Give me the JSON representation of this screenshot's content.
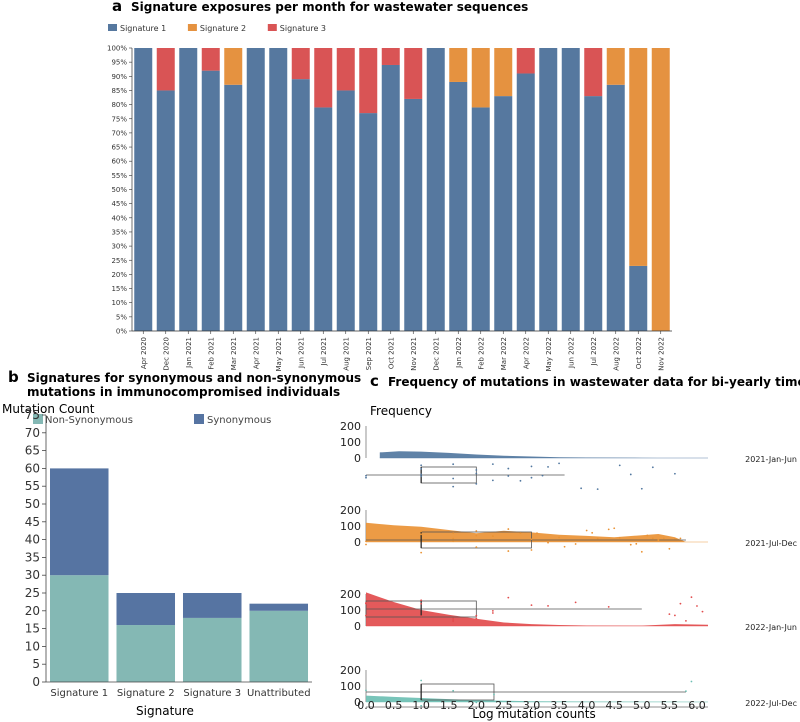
{
  "colors": {
    "sig1": "#56789f",
    "sig2": "#e59240",
    "sig3": "#d95455",
    "nonsyn": "#84b8b4",
    "syn": "#5674a2",
    "t1": "#51779f",
    "t2": "#ea9335",
    "t3": "#e24c4d",
    "t4": "#6cbfb3"
  },
  "chart_data": [
    {
      "panel": "a",
      "type": "bar",
      "stacked": "percent",
      "title": "Signature exposures per month for wastewater sequences",
      "legend": [
        "Signature 1",
        "Signature 2",
        "Signature 3"
      ],
      "categories": [
        "Apr 2020",
        "Dec 2020",
        "Jan 2021",
        "Feb 2021",
        "Mar 2021",
        "Apr 2021",
        "May 2021",
        "Jun 2021",
        "Jul 2021",
        "Aug 2021",
        "Sep 2021",
        "Oct 2021",
        "Nov 2021",
        "Dec 2021",
        "Jan 2022",
        "Feb 2022",
        "Mar 2022",
        "Apr 2022",
        "May 2022",
        "Jun 2022",
        "Jul 2022",
        "Aug 2022",
        "Oct 2022",
        "Nov 2022"
      ],
      "series": [
        {
          "name": "Signature 1",
          "values": [
            100,
            85,
            100,
            92,
            87,
            100,
            100,
            89,
            79,
            85,
            77,
            94,
            82,
            100,
            88,
            79,
            83,
            91,
            100,
            100,
            83,
            87,
            23,
            0
          ]
        },
        {
          "name": "Signature 2",
          "values": [
            0,
            0,
            0,
            0,
            13,
            0,
            0,
            0,
            0,
            0,
            0,
            0,
            0,
            0,
            12,
            21,
            17,
            0,
            0,
            0,
            0,
            13,
            77,
            100
          ]
        },
        {
          "name": "Signature 3",
          "values": [
            0,
            15,
            0,
            8,
            0,
            0,
            0,
            11,
            21,
            15,
            23,
            6,
            18,
            0,
            0,
            0,
            0,
            9,
            0,
            0,
            17,
            0,
            0,
            0
          ]
        }
      ],
      "yticks": [
        "0%",
        "5%",
        "10%",
        "15%",
        "20%",
        "25%",
        "30%",
        "35%",
        "40%",
        "45%",
        "50%",
        "55%",
        "60%",
        "65%",
        "70%",
        "75%",
        "80%",
        "85%",
        "90%",
        "95%",
        "100%"
      ],
      "ylim": [
        0,
        100
      ]
    },
    {
      "panel": "b",
      "type": "bar",
      "stacked": true,
      "title": "Signatures for synonymous and non-synonymous mutations in immunocompromised individuals",
      "xlabel": "Signature",
      "ylabel": "Mutation Count",
      "legend": [
        "Non-Synonymous",
        "Synonymous"
      ],
      "categories": [
        "Signature 1",
        "Signature 2",
        "Signature 3",
        "Unattributed"
      ],
      "series": [
        {
          "name": "Non-Synonymous",
          "values": [
            30,
            16,
            18,
            20
          ]
        },
        {
          "name": "Synonymous",
          "values": [
            30,
            9,
            7,
            2
          ]
        }
      ],
      "ylim": [
        0,
        75
      ],
      "yticks": [
        0,
        5,
        10,
        15,
        20,
        25,
        30,
        35,
        40,
        45,
        50,
        55,
        60,
        65,
        70,
        75
      ]
    },
    {
      "panel": "c",
      "type": "area",
      "subtype": "raincloud",
      "title": "Frequency of mutations in wastewater data for bi-yearly time groups",
      "xlabel": "Log mutation counts",
      "ylabel": "Frequency",
      "xlim": [
        0,
        6.2
      ],
      "xticks": [
        "0.0",
        "0.5",
        "1.0",
        "1.5",
        "2.0",
        "2.5",
        "3.0",
        "3.5",
        "4.0",
        "4.5",
        "5.0",
        "5.5",
        "6.0"
      ],
      "yticks": [
        "200",
        "100",
        "0"
      ],
      "groups": [
        {
          "name": "2021-Jan-Jun",
          "density": [
            [
              0.25,
              35
            ],
            [
              0.6,
              42
            ],
            [
              1.0,
              40
            ],
            [
              1.5,
              32
            ],
            [
              2.0,
              22
            ],
            [
              2.5,
              14
            ],
            [
              3.0,
              9
            ],
            [
              3.5,
              5
            ],
            [
              4.0,
              3
            ],
            [
              4.5,
              2
            ],
            [
              5.0,
              1
            ],
            [
              5.3,
              0
            ]
          ],
          "box": {
            "min": 0.0,
            "q1": 1.0,
            "median": 1.0,
            "q3": 2.0,
            "max": 3.6
          },
          "points": [
            0,
            0,
            1,
            1,
            1,
            1,
            1.58,
            1.58,
            1.58,
            2,
            2,
            2,
            2.3,
            2.3,
            2.58,
            2.58,
            2.8,
            3,
            3,
            3.2,
            3.3,
            3.5,
            3.9,
            4.2,
            4.6,
            4.8,
            5.0,
            5.2,
            5.6
          ]
        },
        {
          "name": "2021-Jul-Dec",
          "density": [
            [
              0.0,
              120
            ],
            [
              0.5,
              105
            ],
            [
              1.0,
              95
            ],
            [
              1.5,
              75
            ],
            [
              2.0,
              55
            ],
            [
              2.5,
              70
            ],
            [
              3.0,
              60
            ],
            [
              3.5,
              45
            ],
            [
              4.0,
              38
            ],
            [
              4.5,
              30
            ],
            [
              5.0,
              42
            ],
            [
              5.3,
              50
            ],
            [
              5.6,
              30
            ],
            [
              5.8,
              0
            ]
          ],
          "box": {
            "min": 0.0,
            "q1": 1.0,
            "median": 1.0,
            "q3": 3.0,
            "max": 5.8
          },
          "points": [
            0,
            0,
            1,
            1,
            1,
            1.58,
            1.58,
            1.58,
            2,
            2,
            2,
            2.3,
            2.3,
            2.58,
            2.58,
            2.8,
            3,
            3,
            3.1,
            3.3,
            3.5,
            3.6,
            3.8,
            4,
            4.1,
            4.2,
            4.4,
            4.5,
            4.6,
            4.8,
            4.9,
            5,
            5.1,
            5.2,
            5.3,
            5.4,
            5.5,
            5.6,
            5.7
          ]
        },
        {
          "name": "2022-Jan-Jun",
          "density": [
            [
              0.0,
              210
            ],
            [
              0.5,
              150
            ],
            [
              1.0,
              100
            ],
            [
              1.5,
              70
            ],
            [
              2.0,
              45
            ],
            [
              2.5,
              22
            ],
            [
              3.0,
              12
            ],
            [
              3.5,
              6
            ],
            [
              4.0,
              3
            ],
            [
              5.0,
              2
            ],
            [
              5.6,
              12
            ],
            [
              6.2,
              8
            ]
          ],
          "box": {
            "min": 0.0,
            "q1": 0.0,
            "median": 1.0,
            "q3": 2.0,
            "max": 5.0
          },
          "points": [
            0,
            0,
            0,
            1,
            1,
            1,
            1.58,
            1.58,
            1.58,
            2,
            2,
            2.3,
            2.3,
            2.58,
            3,
            3.3,
            3.8,
            4.4,
            5.5,
            5.6,
            5.7,
            5.8,
            5.9,
            6.0,
            6.1
          ]
        },
        {
          "name": "2022-Jul-Dec",
          "density": [
            [
              0.0,
              40
            ],
            [
              0.5,
              32
            ],
            [
              1.0,
              25
            ],
            [
              1.5,
              18
            ],
            [
              2.0,
              12
            ],
            [
              2.5,
              8
            ],
            [
              3.0,
              5
            ],
            [
              4.0,
              3
            ],
            [
              5.0,
              2
            ],
            [
              6.2,
              1
            ]
          ],
          "box": {
            "min": 0.0,
            "q1": 1.0,
            "median": 1.0,
            "q3": 2.32,
            "max": 5.8
          },
          "points": [
            0,
            1,
            1,
            1.58,
            2,
            2.32,
            5.8,
            5.9
          ]
        }
      ]
    }
  ],
  "panel_labels": {
    "a": "a",
    "b": "b",
    "c": "c"
  }
}
